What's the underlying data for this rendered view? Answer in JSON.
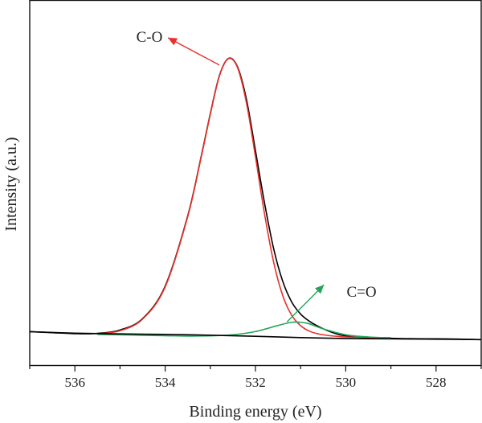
{
  "chart_data": {
    "type": "line",
    "xlabel": "Binding energy (eV)",
    "ylabel": "Intensity (a.u.)",
    "x_reversed": true,
    "xlim": [
      537,
      527
    ],
    "ylim": [
      -1,
      30
    ],
    "y_ticks_shown": false,
    "grid": false,
    "legend": "none",
    "x_ticks": [
      536,
      534,
      532,
      530,
      528
    ],
    "series": [
      {
        "key": "total",
        "color": "#000000",
        "x": [
          537.0,
          536.5,
          536.0,
          535.5,
          535.0,
          534.5,
          534.0,
          533.5,
          533.2,
          533.0,
          532.8,
          532.6,
          532.4,
          532.2,
          532.0,
          531.8,
          531.6,
          531.4,
          531.2,
          531.0,
          530.8,
          530.6,
          530.4,
          530.2,
          530.0,
          529.5,
          529.0,
          528.5,
          528.0,
          527.5,
          527.0
        ],
        "y": [
          0.42,
          0.34,
          0.26,
          0.28,
          0.55,
          1.45,
          4.02,
          9.58,
          14.31,
          17.66,
          20.65,
          22.02,
          21.38,
          18.79,
          14.73,
          10.61,
          7.02,
          4.44,
          2.78,
          1.81,
          1.23,
          0.82,
          0.49,
          0.24,
          0.08,
          -0.06,
          -0.11,
          -0.14,
          -0.15,
          -0.17,
          -0.21
        ]
      },
      {
        "key": "c_o",
        "color": "#e8302b",
        "x": [
          535.5,
          535.0,
          534.5,
          534.0,
          533.5,
          533.2,
          533.0,
          532.8,
          532.6,
          532.4,
          532.2,
          532.0,
          531.8,
          531.6,
          531.4,
          531.2,
          531.0,
          530.8,
          530.6,
          530.4,
          530.2,
          530.0,
          529.5,
          529.0
        ],
        "y": [
          0.23,
          0.49,
          1.41,
          3.95,
          9.52,
          14.25,
          17.6,
          20.62,
          22.0,
          21.32,
          18.52,
          14.25,
          9.75,
          5.96,
          3.31,
          1.73,
          0.89,
          0.45,
          0.24,
          0.12,
          0.05,
          0.0,
          -0.04,
          -0.07
        ]
      },
      {
        "key": "c_eq_o",
        "color": "#25a35a",
        "x": [
          535.5,
          535.0,
          534.5,
          534.0,
          533.5,
          533.0,
          532.5,
          532.0,
          531.5,
          531.2,
          531.0,
          530.8,
          530.5,
          530.0,
          529.5,
          529.0
        ],
        "y": [
          0.2,
          0.17,
          0.13,
          0.1,
          0.07,
          0.09,
          0.17,
          0.43,
          0.91,
          1.16,
          1.16,
          1.03,
          0.64,
          0.17,
          0.0,
          -0.07
        ]
      },
      {
        "key": "background",
        "color": "#000000",
        "x": [
          537.0,
          536.0,
          535.0,
          534.0,
          533.0,
          532.0,
          531.0,
          530.0,
          529.0,
          528.0,
          527.0
        ],
        "y": [
          0.42,
          0.3,
          0.24,
          0.2,
          0.14,
          0.05,
          -0.05,
          -0.12,
          -0.15,
          -0.18,
          -0.21
        ]
      }
    ],
    "annotations": [
      {
        "key": "c_o",
        "text": "C-O",
        "color": "#e8302b",
        "points_to": [
          532.8,
          21.5
        ]
      },
      {
        "key": "c_eq_o",
        "text": "C=O",
        "color": "#25a35a",
        "points_to": [
          531.3,
          1.2
        ]
      }
    ]
  }
}
